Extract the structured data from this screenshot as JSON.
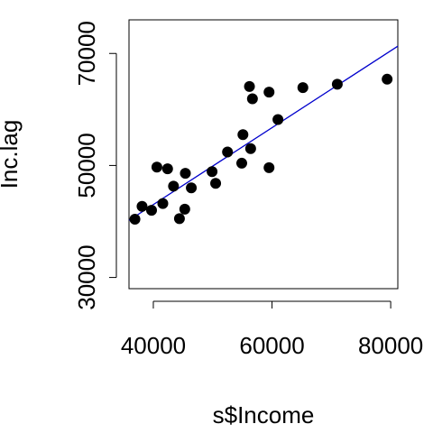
{
  "chart_data": {
    "type": "scatter",
    "xlabel": "s$Income",
    "ylabel": "Inc.lag",
    "xlim": [
      35900,
      81200
    ],
    "ylim": [
      28000,
      76000
    ],
    "xticks": [
      40000,
      60000,
      80000
    ],
    "yticks": [
      30000,
      50000,
      70000
    ],
    "grid": false,
    "points": {
      "x": [
        36900,
        38100,
        39700,
        40600,
        41600,
        42400,
        43400,
        44400,
        45300,
        45400,
        46400,
        49900,
        50500,
        52500,
        54900,
        55100,
        56200,
        56400,
        56700,
        59500,
        59500,
        61000,
        65200,
        71000,
        79400
      ],
      "y": [
        40400,
        42700,
        42000,
        49700,
        43200,
        49400,
        46300,
        40500,
        42200,
        48600,
        46000,
        48900,
        46800,
        52400,
        50400,
        55500,
        64100,
        53000,
        61900,
        63100,
        49600,
        58200,
        63900,
        64500,
        65400
      ]
    },
    "fit_line": {
      "color": "#0000cc",
      "x": [
        35900,
        81200
      ],
      "y": [
        40200,
        71300
      ]
    },
    "point_color": "#000000"
  }
}
